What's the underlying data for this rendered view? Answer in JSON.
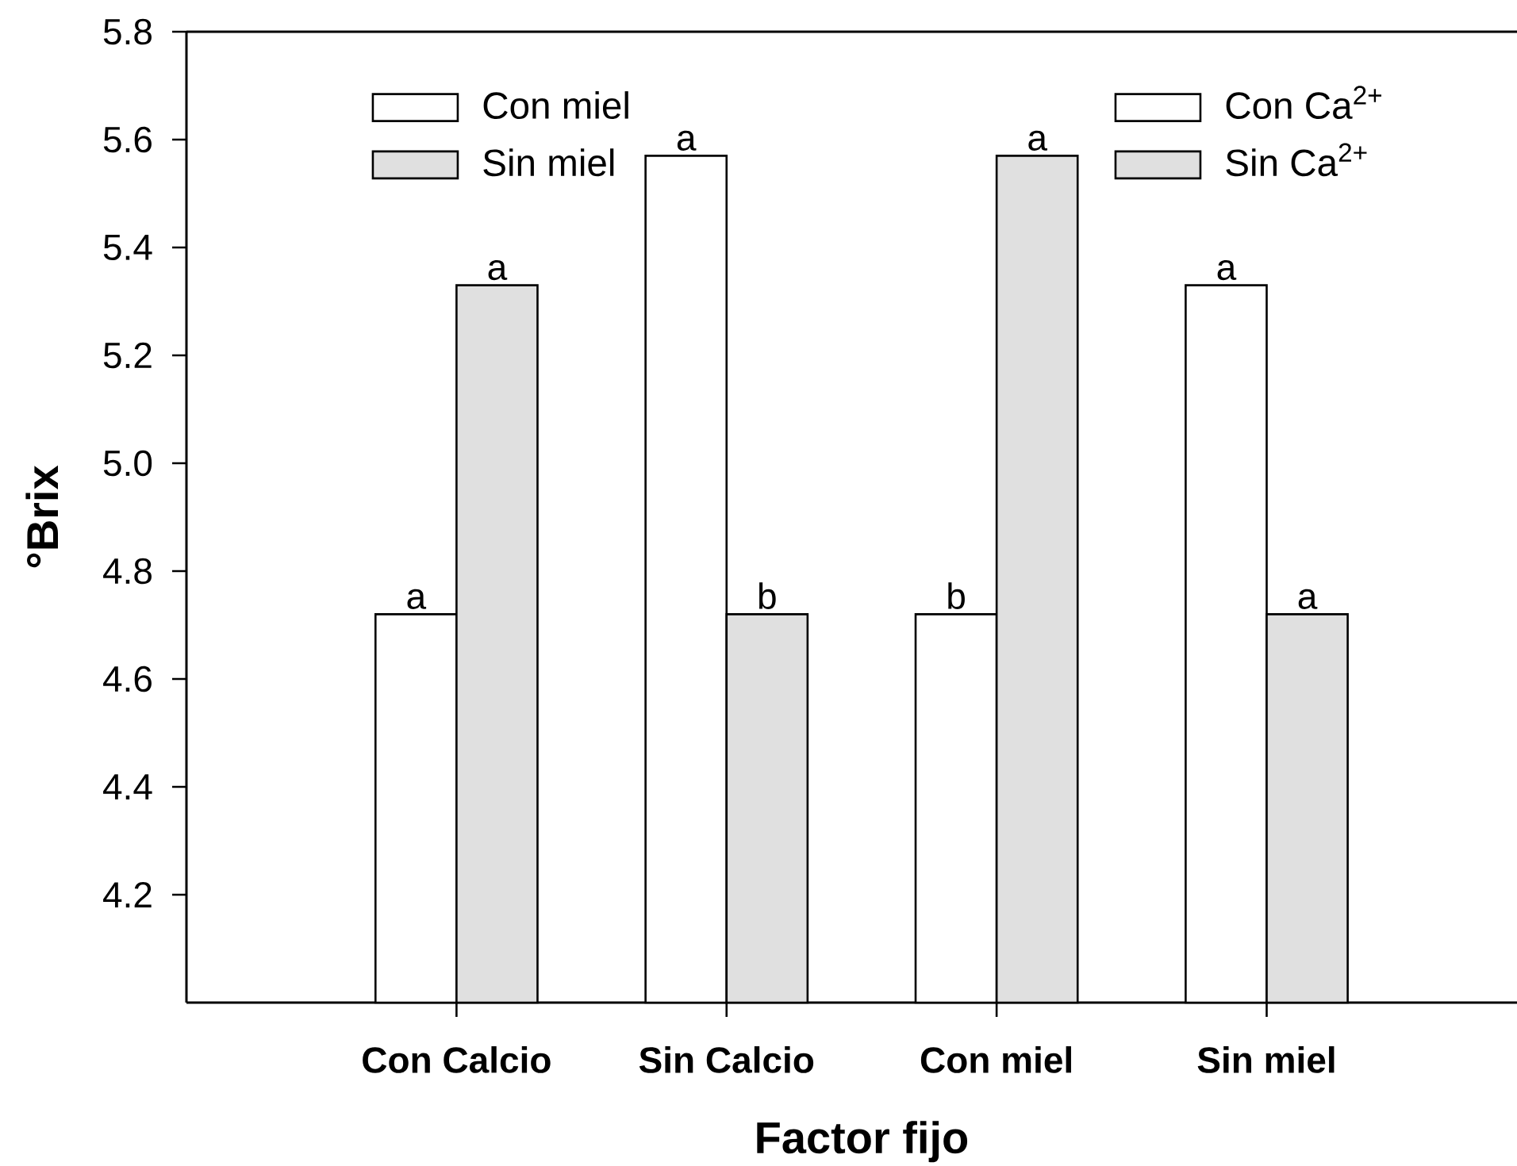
{
  "chart_data": {
    "type": "bar",
    "xlabel": "Factor fijo",
    "ylabel": "°Brix",
    "categories": [
      "Con Calcio",
      "Sin Calcio",
      "Con miel",
      "Sin miel"
    ],
    "series": [
      {
        "name": "Con miel",
        "color": "#ffffff",
        "values": [
          4.72,
          5.57,
          null,
          null
        ],
        "value_labels": [
          "a",
          "a",
          null,
          null
        ]
      },
      {
        "name": "Sin miel",
        "color": "#e0e0e0",
        "values": [
          5.33,
          4.72,
          null,
          null
        ],
        "value_labels": [
          "a",
          "b",
          null,
          null
        ]
      },
      {
        "name": "Con Ca$^{2+}$",
        "color": "#ffffff",
        "values": [
          null,
          null,
          4.72,
          5.33
        ],
        "value_labels": [
          null,
          null,
          "b",
          "a"
        ]
      },
      {
        "name": "Sin Ca$^{2+}$",
        "color": "#e0e0e0",
        "values": [
          null,
          null,
          5.57,
          4.72
        ],
        "value_labels": [
          null,
          null,
          "a",
          "a"
        ]
      }
    ],
    "ylim": [
      4.0,
      5.8
    ],
    "yticks": [
      4.2,
      4.4,
      4.6,
      4.8,
      {
        "value": 5.0,
        "label": "5.0"
      },
      5.2,
      5.4,
      5.6,
      5.8
    ],
    "legend": "top"
  }
}
